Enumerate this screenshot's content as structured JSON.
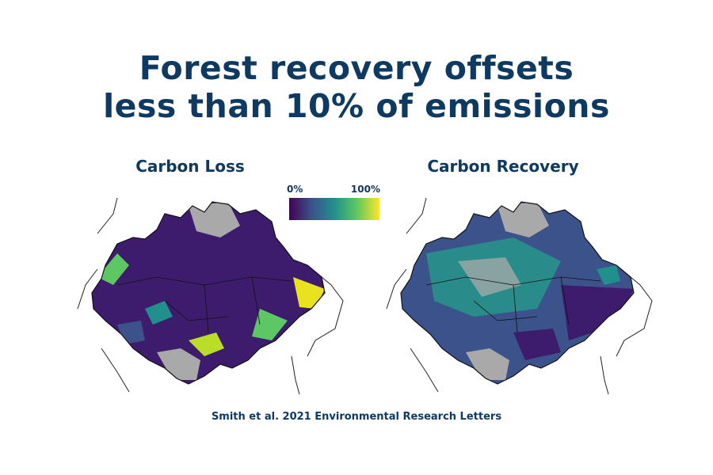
{
  "title": {
    "line1": "Forest recovery offsets",
    "line2": "less than 10% of emissions"
  },
  "panels": {
    "left": {
      "label": "Carbon Loss"
    },
    "right": {
      "label": "Carbon Recovery"
    }
  },
  "legend": {
    "min_label": "0%",
    "max_label": "100%",
    "colormap": [
      "#440154",
      "#3b528b",
      "#21908c",
      "#5dc863",
      "#fde725"
    ]
  },
  "credit": "Smith et al. 2021 Environmental Research Letters",
  "colors": {
    "text_navy": "#0e3a62",
    "non_forest_gray": "#a9a9a9",
    "low_value_purple": "#3d1c6e",
    "high_value_yellow": "#e8e21f",
    "mid_value_teal": "#2a8c8a"
  }
}
